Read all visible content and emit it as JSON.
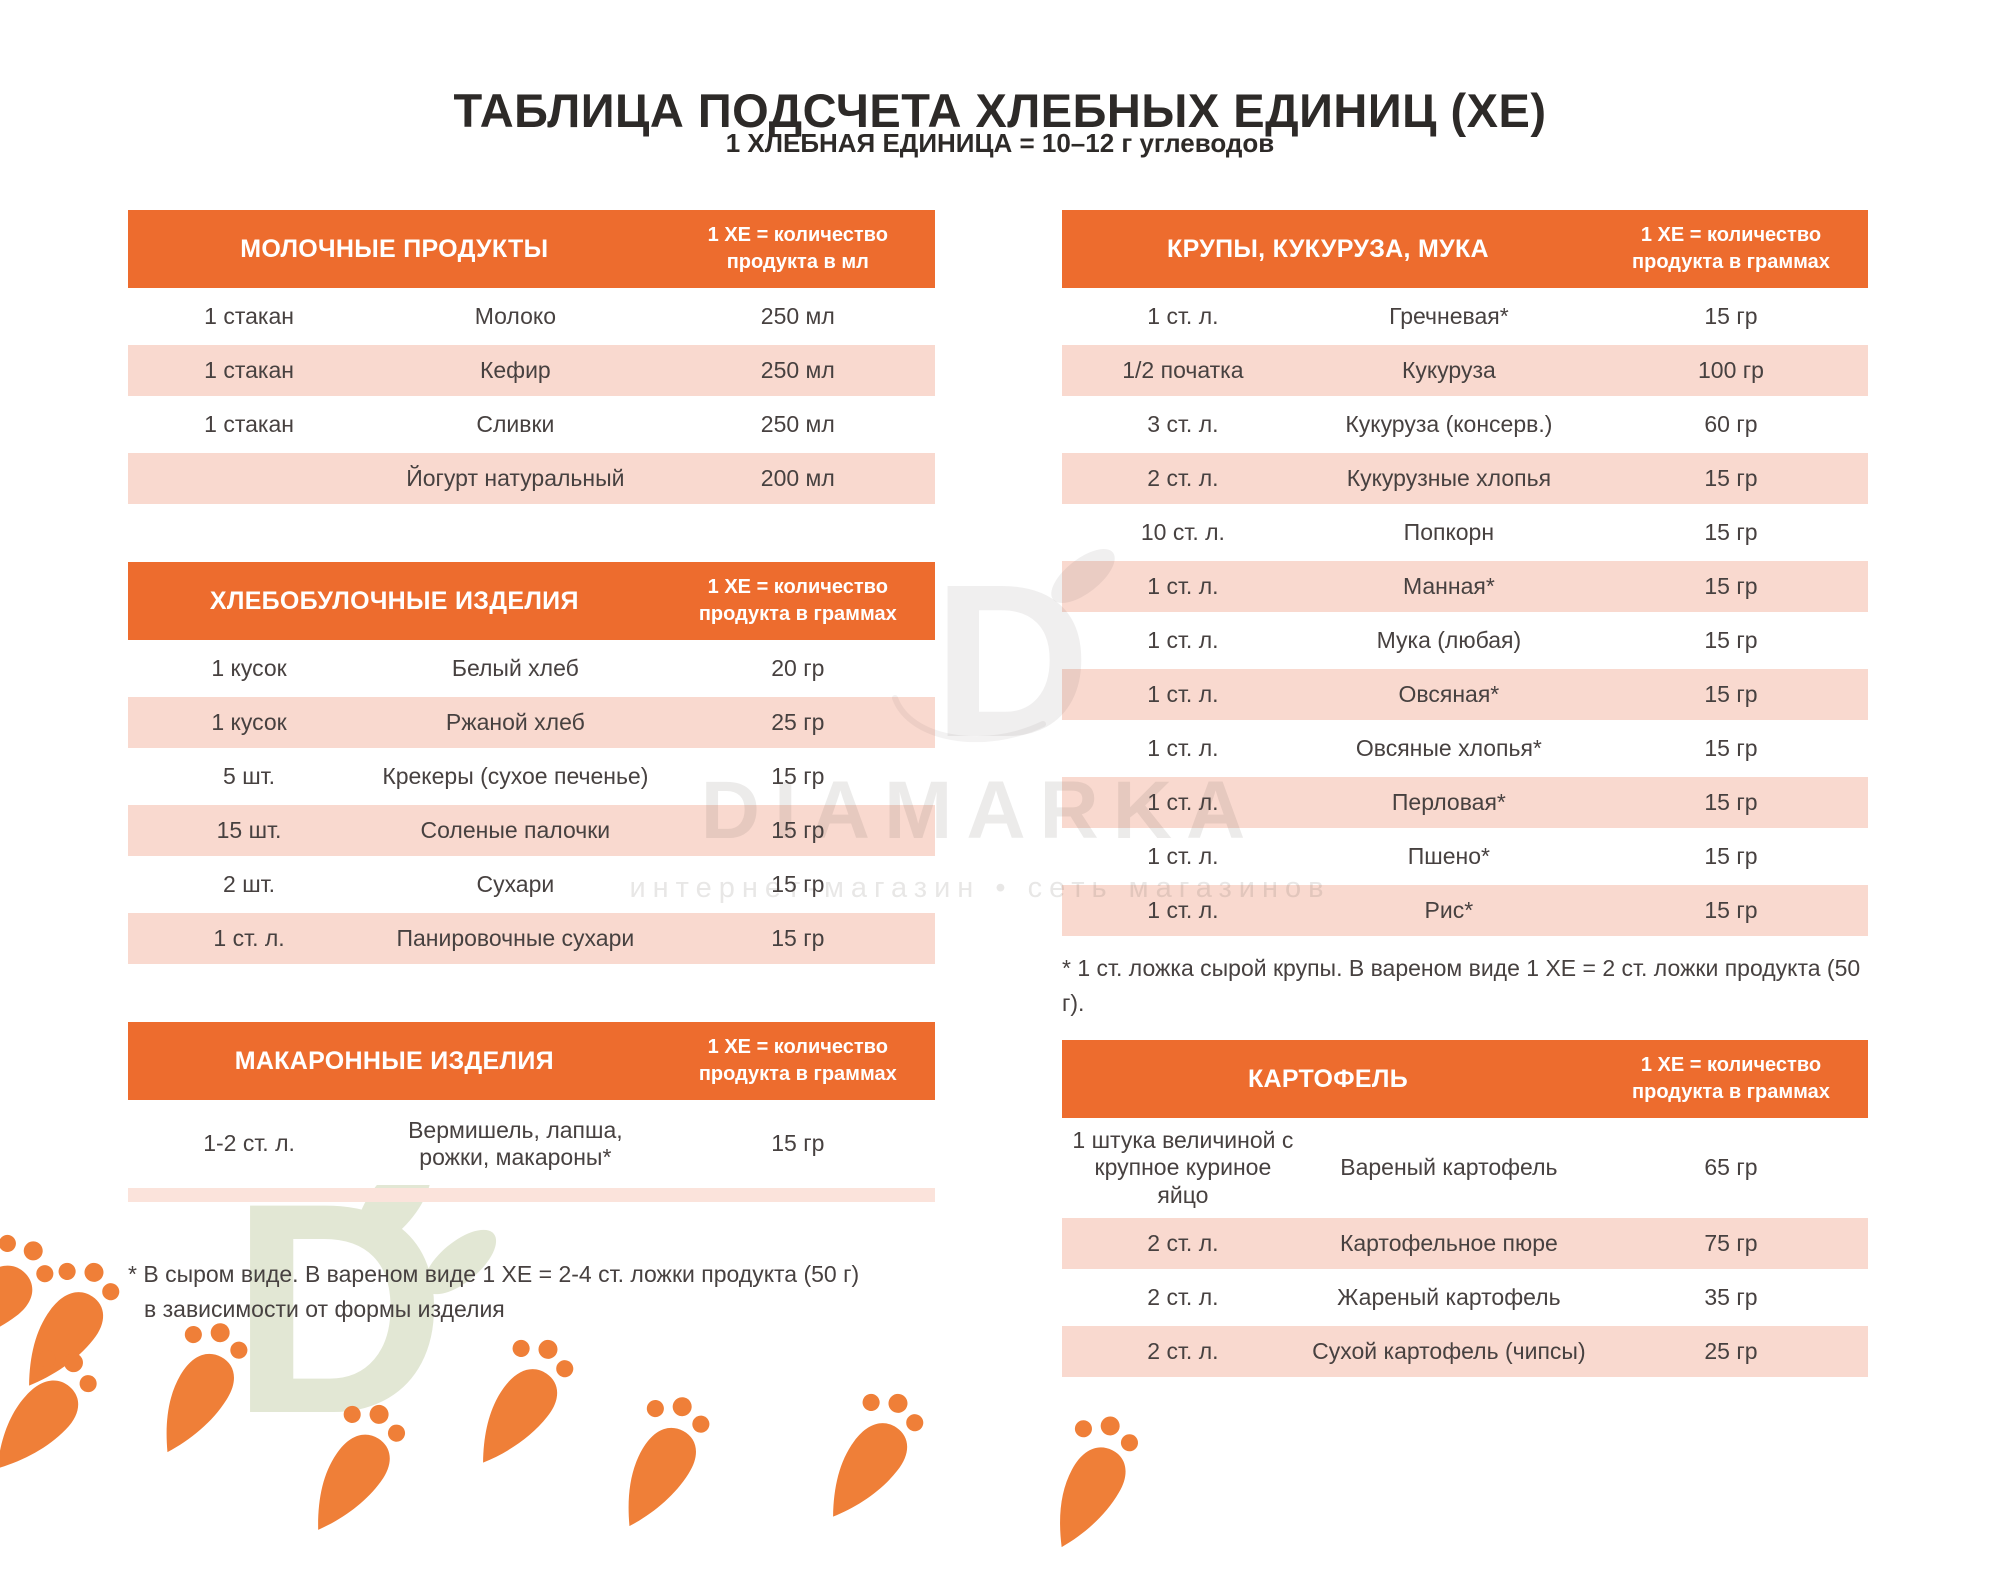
{
  "title": "ТАБЛИЦА ПОДСЧЕТА ХЛЕБНЫХ ЕДИНИЦ (ХЕ)",
  "subtitle": "1 ХЛЕБНАЯ ЕДИНИЦА = 10–12 г углеводов",
  "colors": {
    "header_orange": "#ED6C2E",
    "row_pink": "#F9D9CF",
    "carrot_orange": "#EF7F38",
    "watermark_gray": "#EAE8E6",
    "watermark_green": "#E2E7D4"
  },
  "tables": [
    {
      "id": "dairy",
      "column": "left",
      "title": "МОЛОЧНЫЕ ПРОДУКТЫ",
      "unit_header": "1 ХЕ = количество\nпродукта в мл",
      "rows": [
        {
          "qty": "1 стакан",
          "name": "Молоко",
          "value": "250 мл",
          "tone": "white"
        },
        {
          "qty": "1 стакан",
          "name": "Кефир",
          "value": "250 мл",
          "tone": "pink"
        },
        {
          "qty": "1 стакан",
          "name": "Сливки",
          "value": "250 мл",
          "tone": "white"
        },
        {
          "qty": "",
          "name": "Йогурт натуральный",
          "value": "200 мл",
          "tone": "pink"
        }
      ]
    },
    {
      "id": "bakery",
      "column": "left",
      "title": "ХЛЕБОБУЛОЧНЫЕ ИЗДЕЛИЯ",
      "unit_header": "1 ХЕ = количество\nпродукта в граммах",
      "rows": [
        {
          "qty": "1 кусок",
          "name": "Белый хлеб",
          "value": "20 гр",
          "tone": "white"
        },
        {
          "qty": "1 кусок",
          "name": "Ржаной хлеб",
          "value": "25 гр",
          "tone": "pink"
        },
        {
          "qty": "5 шт.",
          "name": "Крекеры (сухое печенье)",
          "value": "15 гр",
          "tone": "white"
        },
        {
          "qty": "15 шт.",
          "name": "Соленые палочки",
          "value": "15 гр",
          "tone": "pink"
        },
        {
          "qty": "2 шт.",
          "name": "Сухари",
          "value": "15 гр",
          "tone": "white"
        },
        {
          "qty": "1 ст. л.",
          "name": "Панировочные сухари",
          "value": "15 гр",
          "tone": "pink"
        }
      ]
    },
    {
      "id": "pasta",
      "column": "left",
      "title": "МАКАРОННЫЕ ИЗДЕЛИЯ",
      "unit_header": "1 ХЕ = количество\nпродукта в граммах",
      "rows": [
        {
          "qty": "1-2 ст. л.",
          "name": "Вермишель, лапша,\nрожки, макароны*",
          "value": "15 гр",
          "tone": "white",
          "variant": "tall"
        },
        {
          "qty": "",
          "name": "",
          "value": "",
          "tone": "pink",
          "variant": "partial"
        }
      ]
    },
    {
      "id": "grains",
      "column": "right",
      "title": "КРУПЫ, КУКУРУЗА, МУКА",
      "unit_header": "1 ХЕ = количество\nпродукта в граммах",
      "rows": [
        {
          "qty": "1 ст. л.",
          "name": "Гречневая*",
          "value": "15 гр",
          "tone": "white"
        },
        {
          "qty": "1/2 початка",
          "name": "Кукуруза",
          "value": "100 гр",
          "tone": "pink"
        },
        {
          "qty": "3 ст. л.",
          "name": "Кукуруза (консерв.)",
          "value": "60 гр",
          "tone": "white"
        },
        {
          "qty": "2 ст. л.",
          "name": "Кукурузные хлопья",
          "value": "15 гр",
          "tone": "pink"
        },
        {
          "qty": "10 ст. л.",
          "name": "Попкорн",
          "value": "15 гр",
          "tone": "white"
        },
        {
          "qty": "1 ст. л.",
          "name": "Манная*",
          "value": "15 гр",
          "tone": "pink"
        },
        {
          "qty": "1 ст. л.",
          "name": "Мука (любая)",
          "value": "15 гр",
          "tone": "white"
        },
        {
          "qty": "1 ст. л.",
          "name": "Овсяная*",
          "value": "15 гр",
          "tone": "pink"
        },
        {
          "qty": "1 ст. л.",
          "name": "Овсяные хлопья*",
          "value": "15 гр",
          "tone": "white"
        },
        {
          "qty": "1 ст. л.",
          "name": "Перловая*",
          "value": "15 гр",
          "tone": "pink"
        },
        {
          "qty": "1 ст. л.",
          "name": "Пшено*",
          "value": "15 гр",
          "tone": "white"
        },
        {
          "qty": "1 ст. л.",
          "name": "Рис*",
          "value": "15 гр",
          "tone": "pink"
        }
      ]
    },
    {
      "id": "potato",
      "column": "right",
      "title": "КАРТОФЕЛЬ",
      "unit_header": "1 ХЕ = количество\nпродукта в граммах",
      "rows": [
        {
          "qty": "1 штука величиной с\nкрупное куриное\nяйцо",
          "name": "Вареный картофель",
          "value": "65 гр",
          "tone": "white",
          "variant": "xtall"
        },
        {
          "qty": "2 ст. л.",
          "name": "Картофельное пюре",
          "value": "75 гр",
          "tone": "pink"
        },
        {
          "qty": "2 ст. л.",
          "name": "Жареный картофель",
          "value": "35 гр",
          "tone": "white"
        },
        {
          "qty": "2 ст. л.",
          "name": "Сухой картофель (чипсы)",
          "value": "25 гр",
          "tone": "pink"
        }
      ]
    }
  ],
  "footnotes": {
    "left_line1": "* В сыром виде. В вареном виде 1 ХЕ = 2-4 ст. ложки продукта (50 г)",
    "left_line2": "в зависимости от формы изделия",
    "right": "* 1 ст. ложка сырой крупы. В вареном виде 1 ХЕ = 2 ст. ложки продукта (50 г)."
  },
  "watermark": {
    "logo_letter": "D",
    "brand": "DIAMARKA",
    "tagline": "интернет-магазин • сеть магазинов"
  }
}
